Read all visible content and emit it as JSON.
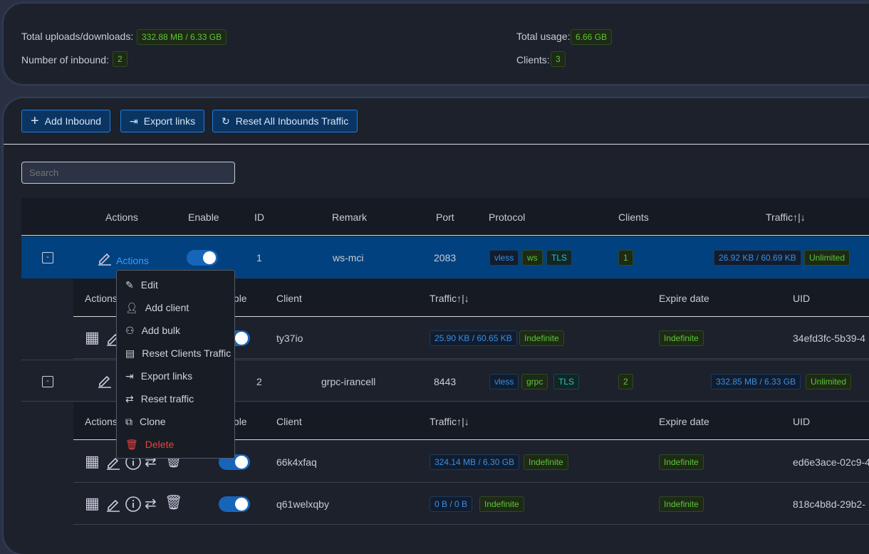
{
  "stats": {
    "total_updown_label": "Total uploads/downloads:",
    "total_updown": "332.88 MB / 6.33 GB",
    "inbound_count_label": "Number of inbound:",
    "inbound_count": "2",
    "total_usage_label": "Total usage:",
    "total_usage": "6.66 GB",
    "clients_label": "Clients:",
    "clients": "3"
  },
  "toolbar": {
    "add": "Add Inbound",
    "export": "Export links",
    "reset": "Reset All Inbounds Traffic"
  },
  "search": {
    "placeholder": "Search"
  },
  "table": {
    "headers": [
      "Actions",
      "Enable",
      "ID",
      "Remark",
      "Port",
      "Protocol",
      "Clients",
      "Traffic↑|↓"
    ],
    "actions_link": "Actions",
    "inbounds": [
      {
        "id": "1",
        "remark": "ws-mci",
        "port": "2083",
        "protocol": [
          "vless",
          "ws",
          "TLS"
        ],
        "clients": "1",
        "traffic": "26.92 KB / 60.69 KB",
        "limit": "Unlimited",
        "enabled": true
      },
      {
        "id": "2",
        "remark": "grpc-irancell",
        "port": "8443",
        "protocol": [
          "vless",
          "grpc",
          "TLS"
        ],
        "clients": "2",
        "traffic": "332.85 MB / 6.33 GB",
        "limit": "Unlimited",
        "enabled": true
      }
    ],
    "client_headers": [
      "Actions",
      "Enable",
      "Client",
      "Traffic↑|↓",
      "Expire date",
      "UID"
    ],
    "clients": [
      {
        "name": "ty37io",
        "traffic": "25.90 KB / 60.65 KB",
        "total": "Indefinite",
        "expire": "Indefinite",
        "uid": "34efd3fc-5b39-4",
        "enabled": true
      },
      {
        "name": "66k4xfaq",
        "traffic": "324.14 MB / 6.30 GB",
        "total": "Indefinite",
        "expire": "Indefinite",
        "uid": "ed6e3ace-02c9-4",
        "enabled": true
      },
      {
        "name": "q61welxqby",
        "traffic": "0 B / 0 B",
        "total": "Indefinite",
        "expire": "Indefinite",
        "uid": "818c4b8d-29b2-",
        "enabled": true
      }
    ]
  },
  "menu": {
    "items": [
      "Edit",
      "Add client",
      "Add bulk",
      "Reset Clients Traffic",
      "Export links",
      "Reset traffic",
      "Clone",
      "Delete"
    ],
    "delete_color": "#e8433f"
  }
}
